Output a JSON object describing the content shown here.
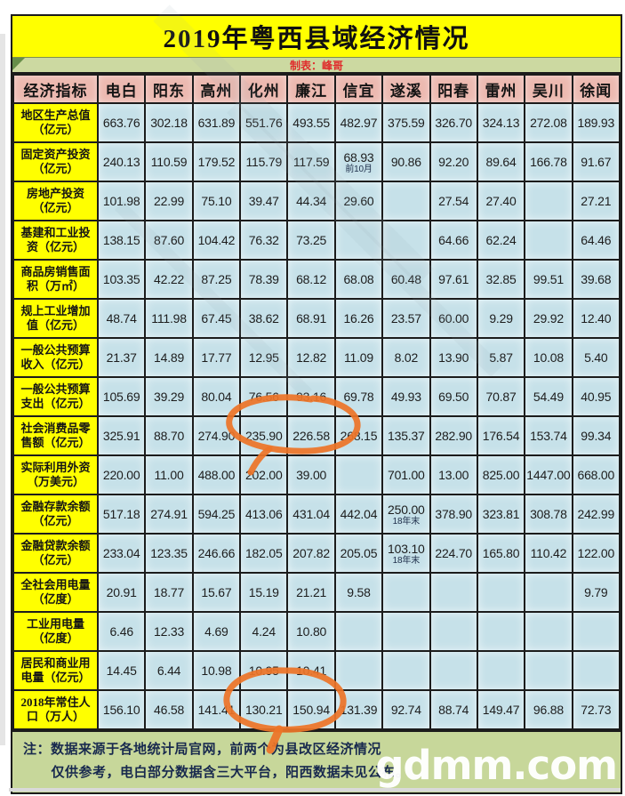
{
  "page": {
    "title": "2019年粤西县域经济情况",
    "subtitle": "制表：峰哥"
  },
  "table": {
    "header": [
      "经济指标",
      "电白",
      "阳东",
      "高州",
      "化州",
      "廉江",
      "信宜",
      "遂溪",
      "阳春",
      "雷州",
      "吴川",
      "徐闻"
    ],
    "rows": [
      {
        "label": "地区生产总值（亿元）",
        "values": [
          "663.76",
          "302.18",
          "631.89",
          "551.76",
          "493.55",
          "482.97",
          "375.59",
          "326.70",
          "324.13",
          "272.08",
          "189.93"
        ]
      },
      {
        "label": "固定资产投资（亿元）",
        "values": [
          "240.13",
          "110.59",
          "179.52",
          "115.79",
          "117.59",
          {
            "v": "68.93",
            "note": "前10月"
          },
          "90.86",
          "92.20",
          "89.64",
          "166.78",
          "91.67"
        ]
      },
      {
        "label": "房地产投资（亿元）",
        "values": [
          "101.98",
          "22.99",
          "75.10",
          "39.47",
          "44.34",
          "29.60",
          "",
          "27.54",
          "27.40",
          "",
          "27.21"
        ]
      },
      {
        "label": "基建和工业投资（亿元）",
        "values": [
          "138.15",
          "87.60",
          "104.42",
          "76.32",
          "73.25",
          "",
          "",
          "64.66",
          "62.24",
          "",
          "64.46"
        ]
      },
      {
        "label": "商品房销售面积（万㎡）",
        "values": [
          "103.35",
          "42.22",
          "87.25",
          "78.39",
          "68.12",
          "68.08",
          "60.48",
          "97.61",
          "32.85",
          "99.51",
          "39.68"
        ]
      },
      {
        "label": "规上工业增加值（亿元）",
        "values": [
          "48.74",
          "111.98",
          "67.45",
          "38.62",
          "68.91",
          "16.26",
          "23.57",
          "60.00",
          "9.29",
          "29.92",
          "12.40"
        ]
      },
      {
        "label": "一般公共预算收入（亿元）",
        "values": [
          "21.37",
          "14.89",
          "17.77",
          "12.95",
          "12.82",
          "11.09",
          "8.02",
          "13.90",
          "5.87",
          "10.08",
          "5.40"
        ]
      },
      {
        "label": "一般公共预算支出（亿元）",
        "values": [
          "105.69",
          "39.29",
          "80.04",
          "76.56",
          "93.16",
          "69.78",
          "49.93",
          "69.50",
          "70.87",
          "54.49",
          "40.95"
        ]
      },
      {
        "label": "社会消费品零售额（亿元）",
        "values": [
          "325.91",
          "88.70",
          "274.90",
          "235.90",
          "226.58",
          "268.15",
          "135.37",
          "282.90",
          "176.54",
          "153.74",
          "99.34"
        ]
      },
      {
        "label": "实际利用外资（万美元）",
        "values": [
          "220.00",
          "11.00",
          "488.00",
          "202.00",
          "39.00",
          "",
          "701.00",
          "13.00",
          "825.00",
          "1447.00",
          "668.00"
        ]
      },
      {
        "label": "金融存款余额（亿元）",
        "values": [
          "517.18",
          "274.91",
          "594.25",
          "413.06",
          "431.04",
          "442.04",
          {
            "v": "250.00",
            "note": "18年末"
          },
          "378.90",
          "323.81",
          "308.78",
          "242.99"
        ]
      },
      {
        "label": "金融贷款余额（亿元）",
        "values": [
          "233.04",
          "123.35",
          "246.66",
          "182.05",
          "207.82",
          "205.05",
          {
            "v": "103.10",
            "note": "18年末"
          },
          "224.70",
          "165.80",
          "110.42",
          "122.00"
        ]
      },
      {
        "label": "全社会用电量（亿度）",
        "values": [
          "20.91",
          "18.77",
          "15.67",
          "15.19",
          "21.21",
          "9.58",
          "",
          "",
          "",
          "",
          "9.79"
        ]
      },
      {
        "label": "工业用电量（亿度）",
        "values": [
          "6.46",
          "12.33",
          "4.69",
          "4.24",
          "10.80",
          "",
          "",
          "",
          "",
          "",
          ""
        ]
      },
      {
        "label": "居民和商业用电量（亿元）",
        "values": [
          "14.45",
          "6.44",
          "10.98",
          "10.95",
          "10.41",
          "",
          "",
          "",
          "",
          "",
          ""
        ]
      },
      {
        "label": "2018年常住人口（万人）",
        "values": [
          "156.10",
          "46.58",
          "141.41",
          "130.21",
          "150.94",
          "131.39",
          "92.74",
          "88.74",
          "149.47",
          "96.88",
          "72.73"
        ]
      }
    ]
  },
  "annotations": {
    "color": "#ed7428",
    "circled_cells": [
      {
        "row": "社会消费品零售额（亿元）",
        "columns": [
          "化州",
          "廉江"
        ],
        "values": [
          "235.90",
          "226.58"
        ]
      },
      {
        "row": "2018年常住人口（万人）",
        "columns": [
          "化州",
          "廉江"
        ],
        "values": [
          "130.21",
          "150.94"
        ]
      }
    ]
  },
  "footer": {
    "note_line1": "注：数据来源于各地统计局官网，前两个为县改区经济情况",
    "note_line2": "仅供参考，电白部分数据含三大平台，阳西数据未见公布。",
    "watermark": "gdmm.com"
  },
  "colors": {
    "title_bg": "#ffff00",
    "subtitle_bg": "#ccd9a1",
    "subtitle_text": "#e02b2b",
    "header_bg": "#ecb9b0",
    "indicator_bg": "#ffff00",
    "cell_bg": "#c6e1e9",
    "footer_bg": "#c7d79a",
    "annotation": "#ed7428",
    "border": "#1b1b1b"
  }
}
